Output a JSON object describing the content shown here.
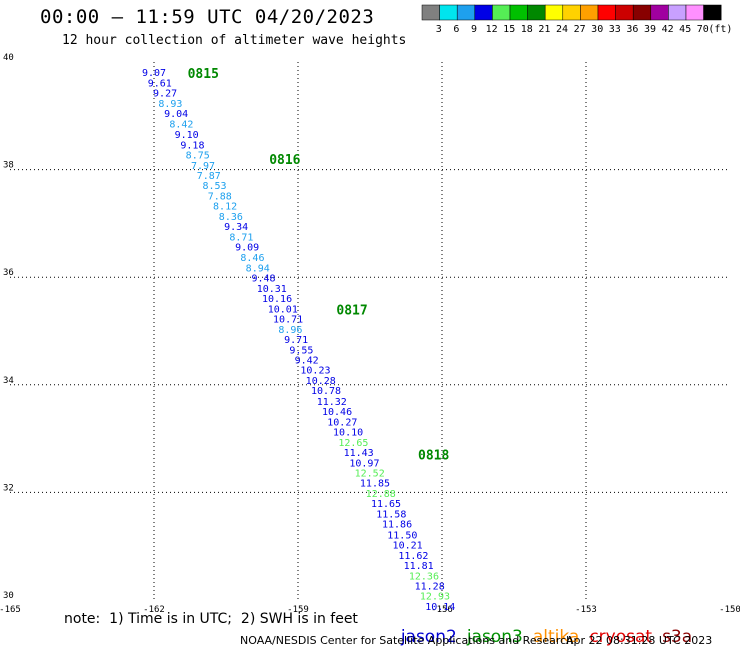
{
  "header": {
    "title": "00:00 — 11:59 UTC 04/20/2023",
    "subtitle": "12 hour collection of altimeter wave heights"
  },
  "color_scale": {
    "ticks": [
      "3",
      "6",
      "9",
      "12",
      "15",
      "18",
      "21",
      "24",
      "27",
      "30",
      "33",
      "36",
      "39",
      "42",
      "45",
      "70",
      "(ft)"
    ],
    "colors": [
      "#808080",
      "#00e5ee",
      "#1ea0ee",
      "#0000e6",
      "#55ee55",
      "#00c000",
      "#008800",
      "#ffff00",
      "#ffd200",
      "#ffa000",
      "#ff0000",
      "#cc0000",
      "#880000",
      "#a000a0",
      "#c8a0ff",
      "#ff90ff",
      "#000000"
    ]
  },
  "notes": {
    "note": "note:  1) Time is in UTC;  2) SWH is in feet",
    "footer_left": "NOAA/NESDIS Center for Satellite Applications and Research",
    "footer_right": "Apr 22 08:31:28 UTC 2023"
  },
  "satellites": [
    {
      "name": "jason2",
      "color": "#0000d0"
    },
    {
      "name": "jason3",
      "color": "#009000"
    },
    {
      "name": "altika",
      "color": "#ff9000"
    },
    {
      "name": "cryosat",
      "color": "#e00000"
    },
    {
      "name": "s3a",
      "color": "#8b0000"
    }
  ],
  "chart_data": {
    "type": "scatter",
    "x_ticks": [
      "-165",
      "-162",
      "-159",
      "-156",
      "-153",
      "-150"
    ],
    "y_ticks": [
      "40",
      "38",
      "36",
      "34",
      "32",
      "30"
    ],
    "xlim": [
      -165,
      -150
    ],
    "ylim": [
      30,
      40
    ],
    "grid": true,
    "unit": "ft",
    "time_labels": [
      {
        "text": "0815",
        "lon": -161.3,
        "lat": 39.8
      },
      {
        "text": "0816",
        "lon": -159.6,
        "lat": 38.2
      },
      {
        "text": "0817",
        "lon": -158.2,
        "lat": 35.4
      },
      {
        "text": "0818",
        "lon": -156.5,
        "lat": 32.7
      }
    ],
    "points": [
      {
        "v": "9.07",
        "lon": -162.25,
        "lat": 39.81,
        "c": "#0000e6"
      },
      {
        "v": "9.61",
        "lon": -162.13,
        "lat": 39.62,
        "c": "#0000e6"
      },
      {
        "v": "9.27",
        "lon": -162.02,
        "lat": 39.43,
        "c": "#0000e6"
      },
      {
        "v": "8.93",
        "lon": -161.91,
        "lat": 39.24,
        "c": "#1ea0ee"
      },
      {
        "v": "9.04",
        "lon": -161.79,
        "lat": 39.05,
        "c": "#0000e6"
      },
      {
        "v": "8.42",
        "lon": -161.68,
        "lat": 38.86,
        "c": "#1ea0ee"
      },
      {
        "v": "9.10",
        "lon": -161.57,
        "lat": 38.66,
        "c": "#0000e6"
      },
      {
        "v": "9.18",
        "lon": -161.45,
        "lat": 38.47,
        "c": "#0000e6"
      },
      {
        "v": "8.75",
        "lon": -161.34,
        "lat": 38.28,
        "c": "#1ea0ee"
      },
      {
        "v": "7.97",
        "lon": -161.23,
        "lat": 38.09,
        "c": "#1ea0ee"
      },
      {
        "v": "7.87",
        "lon": -161.11,
        "lat": 37.9,
        "c": "#1ea0ee"
      },
      {
        "v": "8.53",
        "lon": -160.99,
        "lat": 37.71,
        "c": "#1ea0ee"
      },
      {
        "v": "7.88",
        "lon": -160.88,
        "lat": 37.52,
        "c": "#1ea0ee"
      },
      {
        "v": "8.12",
        "lon": -160.77,
        "lat": 37.33,
        "c": "#1ea0ee"
      },
      {
        "v": "8.36",
        "lon": -160.65,
        "lat": 37.14,
        "c": "#1ea0ee"
      },
      {
        "v": "9.34",
        "lon": -160.54,
        "lat": 36.95,
        "c": "#0000e6"
      },
      {
        "v": "8.71",
        "lon": -160.43,
        "lat": 36.76,
        "c": "#1ea0ee"
      },
      {
        "v": "9.09",
        "lon": -160.31,
        "lat": 36.57,
        "c": "#0000e6"
      },
      {
        "v": "8.46",
        "lon": -160.2,
        "lat": 36.38,
        "c": "#1ea0ee"
      },
      {
        "v": "8.94",
        "lon": -160.09,
        "lat": 36.18,
        "c": "#1ea0ee"
      },
      {
        "v": "9.48",
        "lon": -159.97,
        "lat": 35.99,
        "c": "#0000e6"
      },
      {
        "v": "10.31",
        "lon": -159.86,
        "lat": 35.8,
        "c": "#0000e6"
      },
      {
        "v": "10.16",
        "lon": -159.75,
        "lat": 35.61,
        "c": "#0000e6"
      },
      {
        "v": "10.01",
        "lon": -159.63,
        "lat": 35.42,
        "c": "#0000e6"
      },
      {
        "v": "10.71",
        "lon": -159.52,
        "lat": 35.23,
        "c": "#0000e6"
      },
      {
        "v": "8.96",
        "lon": -159.41,
        "lat": 35.04,
        "c": "#1ea0ee"
      },
      {
        "v": "9.71",
        "lon": -159.29,
        "lat": 34.85,
        "c": "#0000e6"
      },
      {
        "v": "9.55",
        "lon": -159.18,
        "lat": 34.66,
        "c": "#0000e6"
      },
      {
        "v": "9.42",
        "lon": -159.07,
        "lat": 34.47,
        "c": "#0000e6"
      },
      {
        "v": "10.23",
        "lon": -158.95,
        "lat": 34.28,
        "c": "#0000e6"
      },
      {
        "v": "10.28",
        "lon": -158.84,
        "lat": 34.09,
        "c": "#0000e6"
      },
      {
        "v": "10.78",
        "lon": -158.73,
        "lat": 33.9,
        "c": "#0000e6"
      },
      {
        "v": "11.32",
        "lon": -158.61,
        "lat": 33.7,
        "c": "#0000e6"
      },
      {
        "v": "10.46",
        "lon": -158.5,
        "lat": 33.51,
        "c": "#0000e6"
      },
      {
        "v": "10.27",
        "lon": -158.39,
        "lat": 33.32,
        "c": "#0000e6"
      },
      {
        "v": "10.10",
        "lon": -158.27,
        "lat": 33.13,
        "c": "#0000e6"
      },
      {
        "v": "12.65",
        "lon": -158.16,
        "lat": 32.94,
        "c": "#55ee55"
      },
      {
        "v": "11.43",
        "lon": -158.05,
        "lat": 32.75,
        "c": "#0000e6"
      },
      {
        "v": "10.97",
        "lon": -157.93,
        "lat": 32.56,
        "c": "#0000e6"
      },
      {
        "v": "12.52",
        "lon": -157.82,
        "lat": 32.37,
        "c": "#55ee55"
      },
      {
        "v": "11.85",
        "lon": -157.71,
        "lat": 32.18,
        "c": "#0000e6"
      },
      {
        "v": "12.88",
        "lon": -157.59,
        "lat": 31.99,
        "c": "#55ee55"
      },
      {
        "v": "11.65",
        "lon": -157.48,
        "lat": 31.8,
        "c": "#0000e6"
      },
      {
        "v": "11.58",
        "lon": -157.37,
        "lat": 31.61,
        "c": "#0000e6"
      },
      {
        "v": "11.86",
        "lon": -157.25,
        "lat": 31.42,
        "c": "#0000e6"
      },
      {
        "v": "11.50",
        "lon": -157.14,
        "lat": 31.22,
        "c": "#0000e6"
      },
      {
        "v": "10.21",
        "lon": -157.03,
        "lat": 31.03,
        "c": "#0000e6"
      },
      {
        "v": "11.62",
        "lon": -156.91,
        "lat": 30.84,
        "c": "#0000e6"
      },
      {
        "v": "11.81",
        "lon": -156.8,
        "lat": 30.65,
        "c": "#0000e6"
      },
      {
        "v": "12.36",
        "lon": -156.69,
        "lat": 30.46,
        "c": "#55ee55"
      },
      {
        "v": "11.28",
        "lon": -156.57,
        "lat": 30.27,
        "c": "#0000e6"
      },
      {
        "v": "12.93",
        "lon": -156.46,
        "lat": 30.08,
        "c": "#55ee55"
      },
      {
        "v": "10.14",
        "lon": -156.35,
        "lat": 29.89,
        "c": "#0000e6"
      }
    ]
  }
}
